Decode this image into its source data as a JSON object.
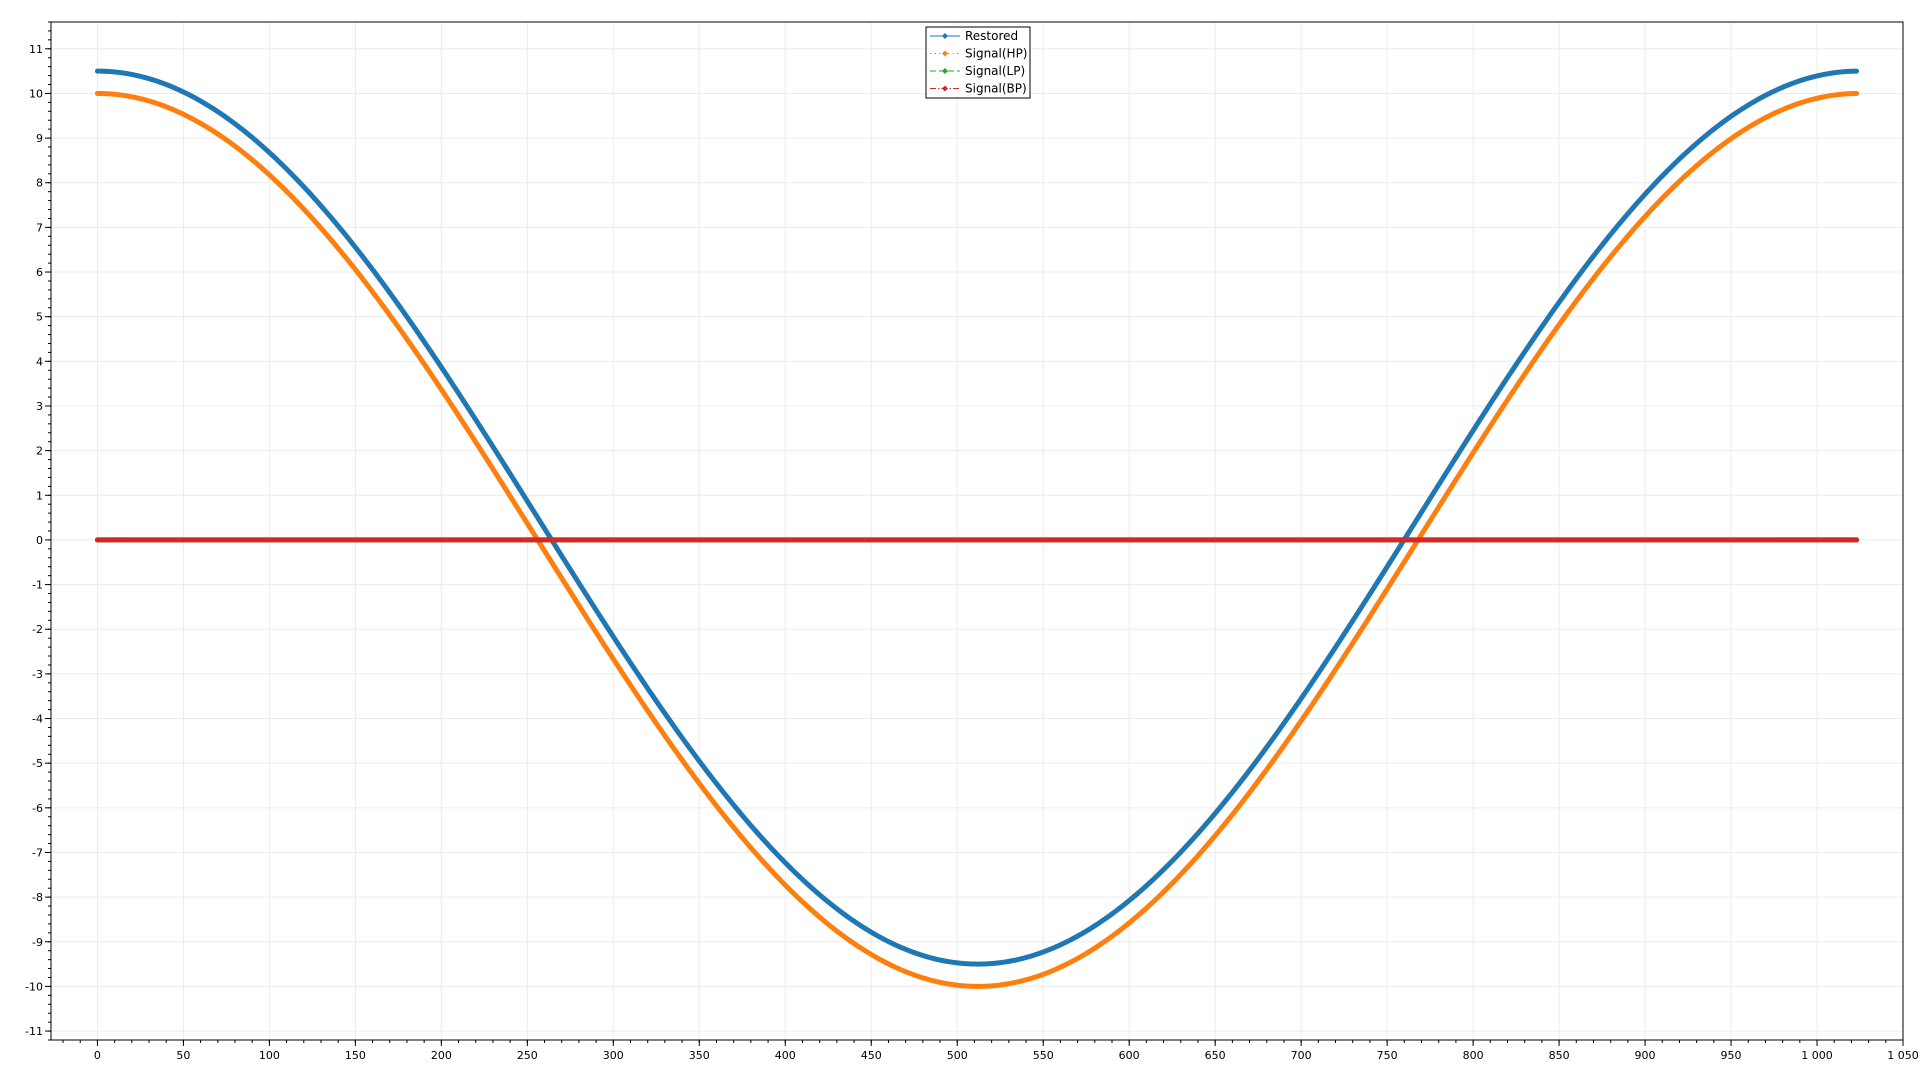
{
  "chart_data": {
    "type": "line",
    "title": "",
    "xlabel": "",
    "ylabel": "",
    "xlim": [
      -27,
      1050
    ],
    "ylim": [
      -11.2,
      11.6
    ],
    "x_ticks": [
      0,
      50,
      100,
      150,
      200,
      250,
      300,
      350,
      400,
      450,
      500,
      550,
      600,
      650,
      700,
      750,
      800,
      850,
      900,
      950,
      1000,
      1050
    ],
    "x_tick_labels": [
      "0",
      "50",
      "100",
      "150",
      "200",
      "250",
      "300",
      "350",
      "400",
      "450",
      "500",
      "550",
      "600",
      "650",
      "700",
      "750",
      "800",
      "850",
      "900",
      "950",
      "1 000",
      "1 050"
    ],
    "y_ticks": [
      -11,
      -10,
      -9,
      -8,
      -7,
      -6,
      -5,
      -4,
      -3,
      -2,
      -1,
      0,
      1,
      2,
      3,
      4,
      5,
      6,
      7,
      8,
      9,
      10,
      11
    ],
    "y_tick_labels": [
      "-11",
      "-10",
      "-9",
      "-8",
      "-7",
      "-6",
      "-5",
      "-4",
      "-3",
      "-2",
      "-1",
      "0",
      "1",
      "2",
      "3",
      "4",
      "5",
      "6",
      "7",
      "8",
      "9",
      "10",
      "11"
    ],
    "grid": true,
    "legend_position": "top-center",
    "x_range": [
      0,
      1023
    ],
    "series": [
      {
        "name": "Restored",
        "color": "#1f77b4",
        "dash": "solid",
        "curve": "cosine",
        "amplitude": 10,
        "offset": 0.5,
        "period": 1024
      },
      {
        "name": "Signal(HP)",
        "color": "#ff7f0e",
        "dash": "dotted",
        "curve": "cosine",
        "amplitude": 10,
        "offset": 0,
        "period": 1024
      },
      {
        "name": "Signal(LP)",
        "color": "#2ca02c",
        "dash": "dashed",
        "curve": "constant",
        "amplitude": 0,
        "offset": 0,
        "period": 1024
      },
      {
        "name": "Signal(BP)",
        "color": "#d62728",
        "dash": "dashdot",
        "curve": "constant",
        "amplitude": 0,
        "offset": 0,
        "period": 1024
      }
    ]
  }
}
